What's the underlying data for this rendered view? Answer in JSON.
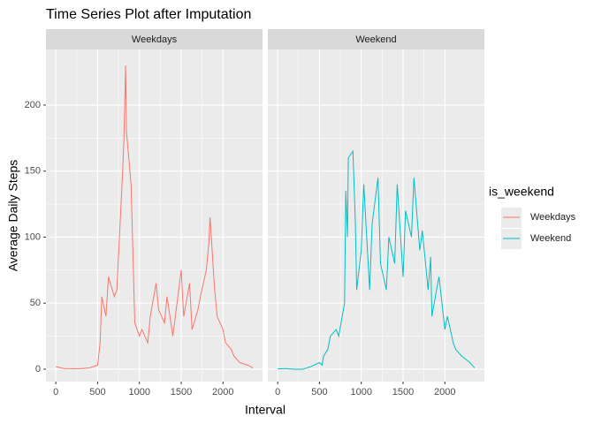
{
  "chart_data": {
    "type": "line",
    "title": "Time Series Plot after Imputation",
    "xlabel": "Interval",
    "ylabel": "Average Daily Steps",
    "legend_title": "is_weekend",
    "legend_position": "right",
    "grid": true,
    "facet_by_series": true,
    "x": [
      0,
      100,
      200,
      300,
      400,
      500,
      530,
      550,
      600,
      630,
      700,
      730,
      800,
      815,
      835,
      845,
      900,
      930,
      945,
      1000,
      1030,
      1100,
      1130,
      1200,
      1230,
      1300,
      1330,
      1400,
      1430,
      1500,
      1530,
      1600,
      1630,
      1700,
      1730,
      1800,
      1830,
      1845,
      1900,
      1930,
      2000,
      2030,
      2100,
      2130,
      2200,
      2300,
      2355
    ],
    "series": [
      {
        "name": "Weekdays",
        "color": "#f8766d",
        "values": [
          2,
          0.5,
          0.3,
          0.5,
          1,
          3,
          20,
          55,
          40,
          70,
          55,
          60,
          150,
          175,
          230,
          180,
          140,
          70,
          35,
          25,
          30,
          20,
          40,
          65,
          45,
          35,
          55,
          25,
          40,
          75,
          40,
          65,
          30,
          45,
          55,
          75,
          95,
          115,
          60,
          40,
          30,
          20,
          15,
          10,
          5,
          3,
          1
        ]
      },
      {
        "name": "Weekend",
        "color": "#00bfc4",
        "values": [
          0.2,
          0.5,
          0,
          0,
          2,
          5,
          3,
          10,
          15,
          25,
          30,
          25,
          50,
          135,
          100,
          160,
          165,
          110,
          60,
          90,
          140,
          60,
          110,
          145,
          80,
          60,
          100,
          80,
          140,
          70,
          120,
          100,
          145,
          90,
          105,
          60,
          85,
          40,
          60,
          70,
          30,
          40,
          20,
          15,
          10,
          5,
          1
        ]
      }
    ],
    "xlim": [
      -117.75,
      2472.75
    ],
    "xticks": [
      0,
      500,
      1000,
      1500,
      2000
    ],
    "ylim": [
      -9.4,
      242.1
    ],
    "yticks": [
      0,
      50,
      100,
      150,
      200
    ]
  }
}
